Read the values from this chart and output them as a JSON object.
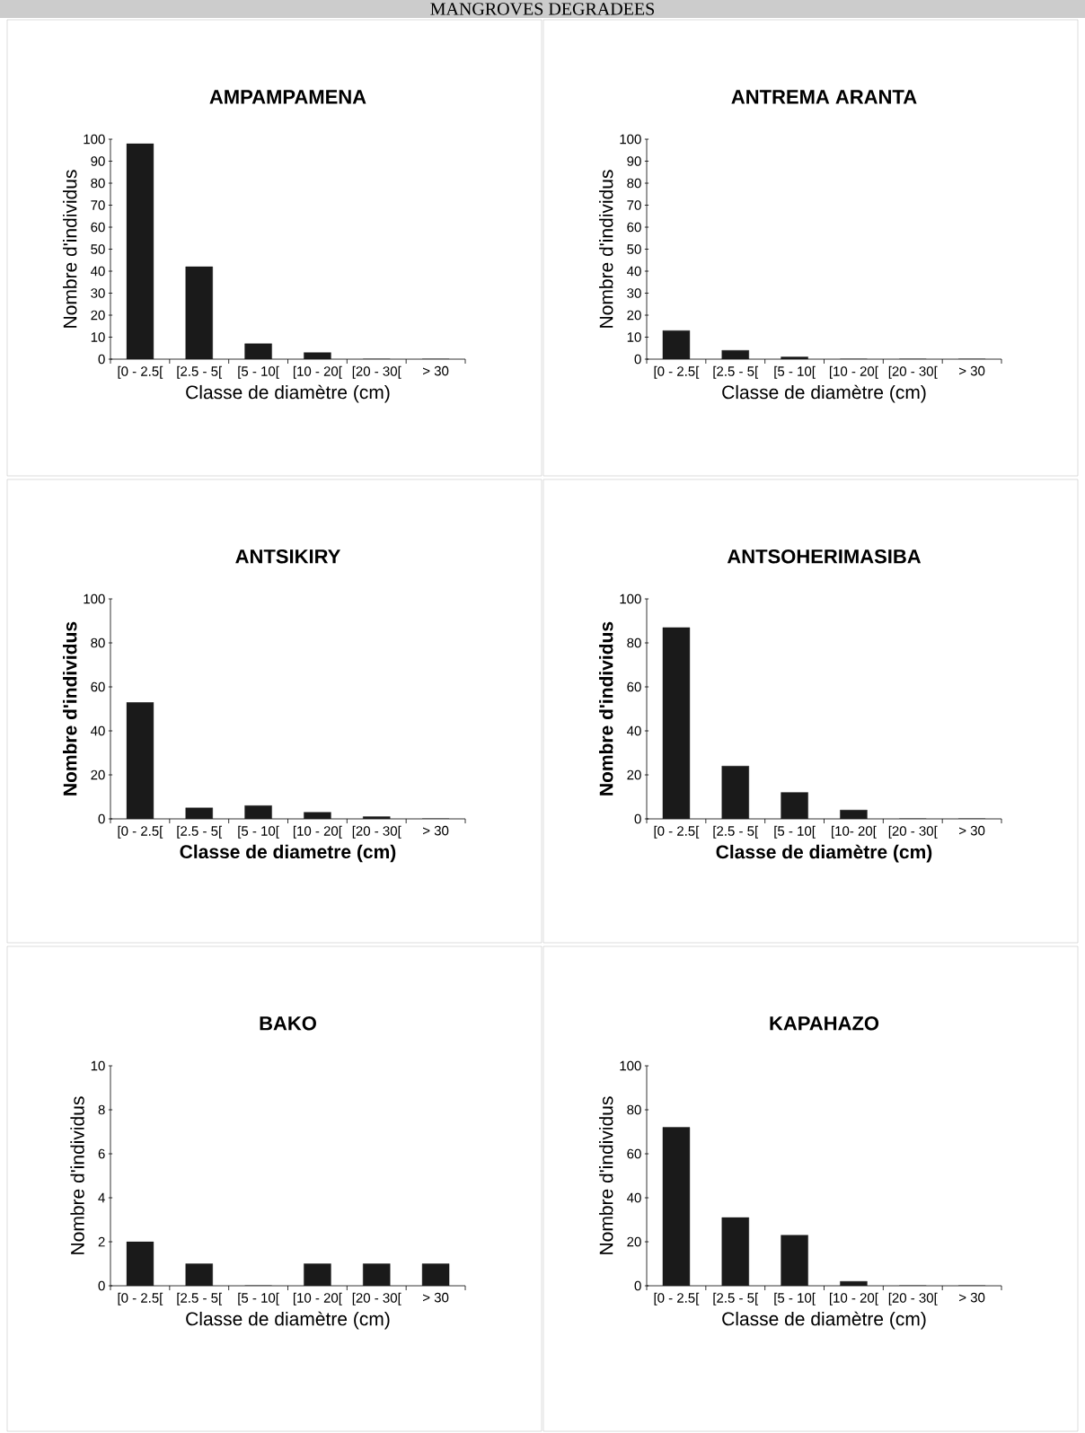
{
  "chart_data": [
    {
      "type": "bar",
      "title": "AMPAMPAMENA",
      "xlabel": "Classe de diamètre (cm)",
      "ylabel": "Nombre d'individus",
      "annotations": [
        "MANGROVES DEGRADEES"
      ],
      "categories": [
        "[0 - 2.5[",
        "[2.5 - 5[",
        "[5 - 10[",
        "[10 - 20[",
        "[20 - 30[",
        "> 30"
      ],
      "values": [
        98,
        42,
        7,
        3,
        0,
        0
      ],
      "color": "#1a1a1a",
      "ylim": [
        0,
        100
      ],
      "yticks": [
        0,
        10,
        20,
        30,
        40,
        50,
        60,
        70,
        80,
        90,
        100
      ]
    },
    {
      "type": "bar",
      "title": "ANTREMA ARANTA",
      "xlabel": "Classe de diamètre (cm)",
      "ylabel": "Nombre d'individus",
      "categories": [
        "[0 - 2.5[",
        "[2.5 - 5[",
        "[5 - 10[",
        "[10 - 20[",
        "[20 - 30[",
        "> 30"
      ],
      "values": [
        13,
        4,
        1,
        0,
        0,
        0
      ],
      "color": "#1a1a1a",
      "ylim": [
        0,
        100
      ],
      "yticks": [
        0,
        10,
        20,
        30,
        40,
        50,
        60,
        70,
        80,
        90,
        100
      ]
    },
    {
      "type": "bar",
      "title": "ANTSIKIRY",
      "xlabel": "Classe de diametre (cm)",
      "ylabel": "Nombre d'individus",
      "categories": [
        "[0 - 2.5[",
        "[2.5 - 5[",
        "[5 - 10[",
        "[10 - 20[",
        "[20 - 30[",
        "> 30"
      ],
      "values": [
        53,
        5,
        6,
        3,
        1,
        0
      ],
      "color": "#1a1a1a",
      "ylim": [
        0,
        100
      ],
      "yticks": [
        0,
        20,
        40,
        60,
        80,
        100
      ]
    },
    {
      "type": "bar",
      "title": "ANTSOHERIMASIBA",
      "xlabel": "Classe de diamètre (cm)",
      "ylabel": "Nombre d'individus",
      "categories": [
        "[0 - 2.5[",
        "[2.5 - 5[",
        "[5 - 10[",
        "[10- 20[",
        "[20 - 30[",
        "> 30"
      ],
      "values": [
        87,
        24,
        12,
        4,
        0,
        0
      ],
      "color": "#1a1a1a",
      "ylim": [
        0,
        100
      ],
      "yticks": [
        0,
        20,
        40,
        60,
        80,
        100
      ]
    },
    {
      "type": "bar",
      "title": "BAKO",
      "xlabel": "Classe de diamètre (cm)",
      "ylabel": "Nombre d'individus",
      "categories": [
        "[0 - 2.5[",
        "[2.5 - 5[",
        "[5 - 10[",
        "[10 - 20[",
        "[20 - 30[",
        "> 30"
      ],
      "values": [
        2,
        1,
        0,
        1,
        1,
        1
      ],
      "color": "#1a1a1a",
      "ylim": [
        0,
        10
      ],
      "yticks": [
        0,
        2,
        4,
        6,
        8,
        10
      ]
    },
    {
      "type": "bar",
      "title": "KAPAHAZO",
      "xlabel": "Classe de diamètre (cm)",
      "ylabel": "Nombre d'individus",
      "categories": [
        "[0 - 2.5[",
        "[2.5 - 5[",
        "[5 - 10[",
        "[10 - 20[",
        "[20 - 30[",
        "> 30"
      ],
      "values": [
        72,
        31,
        23,
        2,
        0,
        0
      ],
      "color": "#1a1a1a",
      "ylim": [
        0,
        100
      ],
      "yticks": [
        0,
        20,
        40,
        60,
        80,
        100
      ]
    }
  ]
}
